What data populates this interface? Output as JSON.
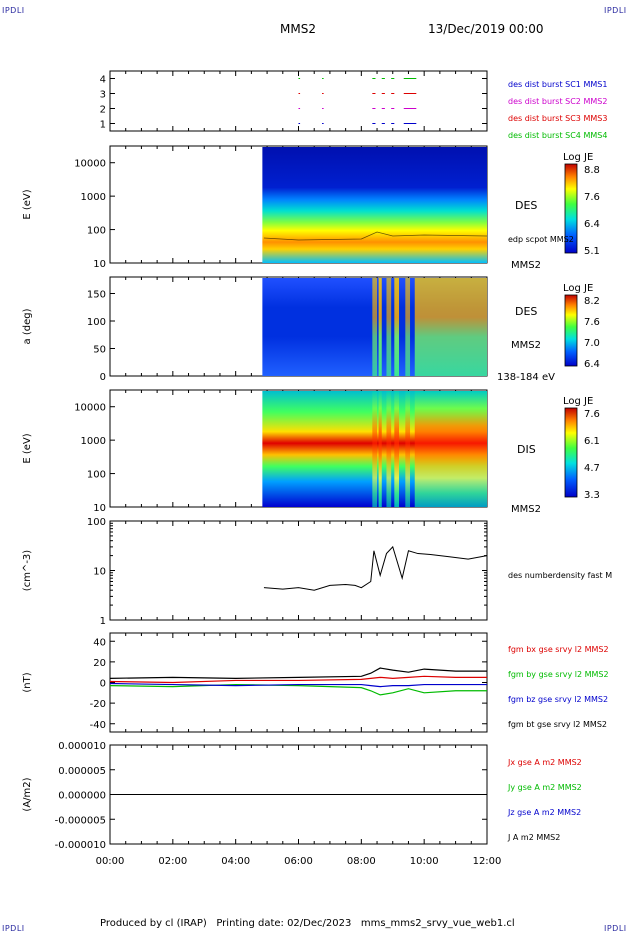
{
  "header": {
    "corner_tl": "IPDLI",
    "corner_tr": "IPDLI",
    "corner_bl": "IPDLI",
    "corner_br": "IPDLI",
    "spacecraft": "MMS2",
    "datetime": "13/Dec/2019 00:00"
  },
  "footer": {
    "credit": "Produced by cl (IRAP)   Printing date: 02/Dec/2023   mms_mms2_srvy_vue_web1.cl"
  },
  "colors": {
    "blue": "#0000cc",
    "magenta": "#cc00cc",
    "red": "#dd0000",
    "green": "#00bb00",
    "black": "#000000"
  },
  "chart_data": [
    {
      "type": "timeline",
      "panel": "burst",
      "ylim": [
        0.5,
        4.5
      ],
      "yticks": [
        "1",
        "2",
        "3",
        "4"
      ],
      "legend": [
        {
          "label": "des dist burst SC1 MMS1",
          "color": "#0000cc"
        },
        {
          "label": "des dist burst SC2 MMS2",
          "color": "#cc00cc"
        },
        {
          "label": "des dist burst SC3 MMS3",
          "color": "#dd0000"
        },
        {
          "label": "des dist burst SC4 MMS4",
          "color": "#00bb00"
        }
      ],
      "intervals_hours": [
        [
          6.0,
          6.05
        ],
        [
          6.75,
          6.8
        ],
        [
          8.35,
          8.45
        ],
        [
          8.65,
          8.75
        ],
        [
          8.95,
          9.05
        ],
        [
          9.35,
          9.75
        ]
      ]
    },
    {
      "type": "heatmap",
      "panel": "des_energy",
      "ylabel": "E (eV)",
      "yticks": [
        "10",
        "100",
        "1000",
        "10000"
      ],
      "side_label": "DES",
      "side_label2": "edp scpot MMS2",
      "side_label3": "MMS2",
      "colorbar_title": "Log JE",
      "colorbar_ticks": [
        "8.8",
        "7.6",
        "6.4",
        "5.1"
      ],
      "data_start_hour": 4.85
    },
    {
      "type": "heatmap",
      "panel": "des_pitch",
      "ylabel": "a (deg)",
      "yticks": [
        "0",
        "50",
        "100",
        "150"
      ],
      "side_label": "DES",
      "side_label2": "MMS2",
      "side_label3": "138-184 eV",
      "colorbar_title": "Log JE",
      "colorbar_ticks": [
        "8.2",
        "7.6",
        "7.0",
        "6.4"
      ],
      "data_start_hour": 4.85
    },
    {
      "type": "heatmap",
      "panel": "dis_energy",
      "ylabel": "E (eV)",
      "yticks": [
        "10",
        "100",
        "1000",
        "10000"
      ],
      "side_label": "DIS",
      "side_label2": "MMS2",
      "colorbar_title": "Log JE",
      "colorbar_ticks": [
        "7.6",
        "6.1",
        "4.7",
        "3.3"
      ],
      "data_start_hour": 4.85
    },
    {
      "type": "line",
      "panel": "density",
      "ylabel": "(cm^-3)",
      "yticks": [
        "1",
        "10",
        "100"
      ],
      "scale": "log",
      "series": [
        {
          "name": "des numberdensity fast M",
          "color": "#000000",
          "x": [
            4.9,
            5.5,
            6.0,
            6.5,
            7.0,
            7.5,
            7.8,
            8.0,
            8.3,
            8.4,
            8.6,
            8.8,
            9.0,
            9.3,
            9.5,
            9.8,
            10.2,
            10.8,
            11.4,
            12.0
          ],
          "y": [
            4.5,
            4.2,
            4.5,
            4.0,
            5.0,
            5.2,
            5.0,
            4.5,
            6.0,
            25,
            8,
            22,
            30,
            7,
            25,
            22,
            21,
            19,
            17,
            20
          ]
        }
      ]
    },
    {
      "type": "line",
      "panel": "bfield",
      "ylabel": "(nT)",
      "yticks": [
        "-40",
        "-20",
        "0",
        "20",
        "40"
      ],
      "ylim": [
        -48,
        48
      ],
      "series": [
        {
          "name": "fgm bx gse srvy l2 MMS2",
          "color": "#dd0000",
          "x": [
            0,
            2,
            4,
            6,
            8,
            8.3,
            8.6,
            9,
            9.5,
            10,
            11,
            12
          ],
          "y": [
            1,
            0,
            2,
            2,
            3,
            4,
            5,
            4,
            5,
            6,
            5,
            5
          ]
        },
        {
          "name": "fgm by gse srvy l2 MMS2",
          "color": "#00bb00",
          "x": [
            0,
            2,
            4,
            6,
            8,
            8.3,
            8.6,
            9,
            9.5,
            10,
            11,
            12
          ],
          "y": [
            -3,
            -4,
            -2,
            -3,
            -5,
            -8,
            -12,
            -10,
            -6,
            -10,
            -8,
            -8
          ]
        },
        {
          "name": "fgm bz gse srvy l2 MMS2",
          "color": "#0000cc",
          "x": [
            0,
            2,
            4,
            6,
            8,
            8.3,
            8.6,
            9,
            9.5,
            10,
            11,
            12
          ],
          "y": [
            -1,
            -2,
            -3,
            -2,
            -2,
            -3,
            -4,
            -3,
            -3,
            -2,
            -2,
            -2
          ]
        },
        {
          "name": "fgm bt gse srvy l2 MMS2",
          "color": "#000000",
          "x": [
            0,
            2,
            4,
            6,
            8,
            8.3,
            8.6,
            9,
            9.5,
            10,
            11,
            12
          ],
          "y": [
            4,
            5,
            4,
            5,
            6,
            9,
            14,
            12,
            10,
            13,
            11,
            11
          ]
        }
      ]
    },
    {
      "type": "line",
      "panel": "current",
      "ylabel": "(A/m2)",
      "yticks": [
        "-0.000010",
        "-0.000005",
        "0.000000",
        "0.000005",
        "0.000010"
      ],
      "ylim": [
        -1e-05,
        1e-05
      ],
      "series": [
        {
          "name": "Jx gse A m2 MMS2",
          "color": "#dd0000",
          "x": [
            0,
            12
          ],
          "y": [
            0,
            0
          ]
        },
        {
          "name": "Jy gse A m2 MMS2",
          "color": "#00bb00",
          "x": [
            0,
            12
          ],
          "y": [
            0,
            0
          ]
        },
        {
          "name": "Jz gse A m2 MMS2",
          "color": "#0000cc",
          "x": [
            0,
            12
          ],
          "y": [
            0,
            0
          ]
        },
        {
          "name": "J A m2 MMS2",
          "color": "#000000",
          "x": [
            0,
            12
          ],
          "y": [
            0,
            0
          ]
        }
      ]
    }
  ],
  "xaxis": {
    "ticks": [
      "00:00",
      "02:00",
      "04:00",
      "06:00",
      "08:00",
      "10:00",
      "12:00"
    ],
    "xlim_hours": [
      0,
      12
    ]
  }
}
